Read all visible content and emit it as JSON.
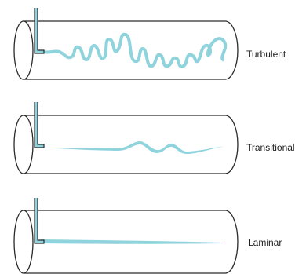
{
  "colors": {
    "pipe_outline": "#2a2a2a",
    "dye": "#8fd3dc",
    "injector_outline": "#2a2a2a",
    "background": "#ffffff"
  },
  "pipes": [
    {
      "label": "Turbulent",
      "flow_regime": "turbulent"
    },
    {
      "label": "Transitional",
      "flow_regime": "transitional"
    },
    {
      "label": "Laminar",
      "flow_regime": "laminar"
    }
  ]
}
